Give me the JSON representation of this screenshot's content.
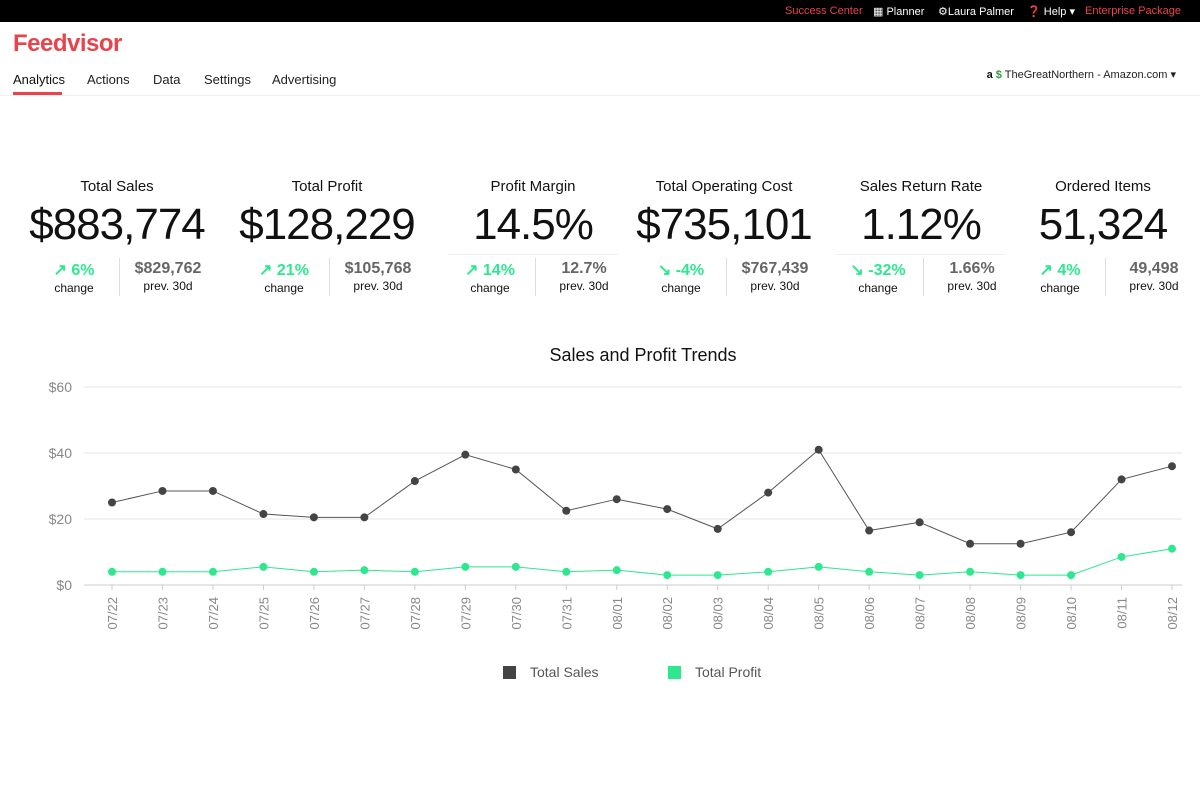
{
  "topbar": {
    "success_center": "Success Center",
    "planner": "Planner",
    "user": "Laura Palmer",
    "help": "Help",
    "package": "Enterprise Package"
  },
  "brand": {
    "logo": "Feedvisor",
    "accent": "#e8444e"
  },
  "nav": {
    "items": [
      "Analytics",
      "Actions",
      "Data",
      "Settings",
      "Advertising"
    ],
    "active": "Analytics"
  },
  "store": {
    "amazon_glyph": "a",
    "dollar_glyph": "$",
    "name": "TheGreatNorthern",
    "marketplace": "- Amazon.com"
  },
  "kpis": [
    {
      "label": "Total Sales",
      "value": "$883,774",
      "arrow": "↗",
      "change": "6%",
      "change_label": "change",
      "prev": "$829,762",
      "prev_label": "prev. 30d"
    },
    {
      "label": "Total Profit",
      "value": "$128,229",
      "arrow": "↗",
      "change": "21%",
      "change_label": "change",
      "prev": "$105,768",
      "prev_label": "prev. 30d"
    },
    {
      "label": "Profit Margin",
      "value": "14.5%",
      "arrow": "↗",
      "change": "14%",
      "change_label": "change",
      "prev": "12.7%",
      "prev_label": "prev. 30d"
    },
    {
      "label": "Total Operating Cost",
      "value": "$735,101",
      "arrow": "↘",
      "change": "-4%",
      "change_label": "change",
      "prev": "$767,439",
      "prev_label": "prev. 30d"
    },
    {
      "label": "Sales Return Rate",
      "value": "1.12%",
      "arrow": "↘",
      "change": "-32%",
      "change_label": "change",
      "prev": "1.66%",
      "prev_label": "prev. 30d"
    },
    {
      "label": "Ordered Items",
      "value": "51,324",
      "arrow": "↗",
      "change": "4%",
      "change_label": "change",
      "prev": "49,498",
      "prev_label": "prev. 30d"
    }
  ],
  "chart_data": {
    "type": "line",
    "title": "Sales and Profit Trends",
    "x": [
      "07/22",
      "07/23",
      "07/24",
      "07/25",
      "07/26",
      "07/27",
      "07/28",
      "07/29",
      "07/30",
      "07/31",
      "08/01",
      "08/02",
      "08/03",
      "08/04",
      "08/05",
      "08/06",
      "08/07",
      "08/08",
      "08/09",
      "08/10",
      "08/11",
      "08/12"
    ],
    "y_ticks": [
      "$0",
      "$20",
      "$40",
      "$60"
    ],
    "ylim": [
      0,
      60
    ],
    "grid": true,
    "legend_placement": "bottom",
    "series": [
      {
        "name": "Total Sales",
        "color": "#444444",
        "values": [
          25,
          28.5,
          28.5,
          21.5,
          20.5,
          20.5,
          31.5,
          39.5,
          35,
          22.5,
          26,
          23,
          17,
          28,
          41,
          16.5,
          19,
          12.5,
          12.5,
          16,
          32,
          36
        ]
      },
      {
        "name": "Total Profit",
        "color": "#2ee88f",
        "values": [
          4,
          4,
          4,
          5.5,
          4,
          4.5,
          4,
          5.5,
          5.5,
          4,
          4.5,
          3,
          3,
          4,
          5.5,
          4,
          3,
          4,
          3,
          3,
          8.5,
          11
        ]
      }
    ]
  }
}
